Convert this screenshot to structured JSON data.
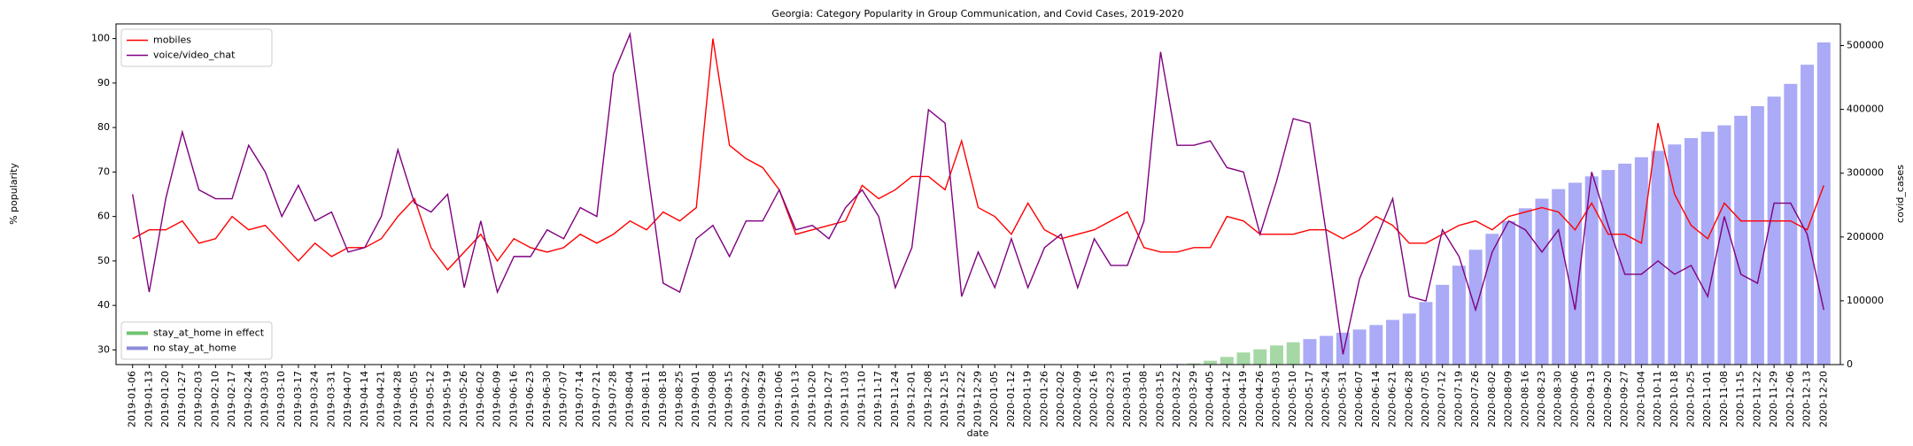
{
  "chart_data": {
    "type": "line",
    "title": "Georgia: Category Popularity in Group Communication, and Covid Cases, 2019-2020",
    "xlabel": "date",
    "ylabel": "% popularity",
    "y2label": "covid_cases",
    "categories": [
      "2019-01-06",
      "2019-01-13",
      "2019-01-20",
      "2019-01-27",
      "2019-02-03",
      "2019-02-10",
      "2019-02-17",
      "2019-02-24",
      "2019-03-03",
      "2019-03-10",
      "2019-03-17",
      "2019-03-24",
      "2019-03-31",
      "2019-04-07",
      "2019-04-14",
      "2019-04-21",
      "2019-04-28",
      "2019-05-05",
      "2019-05-12",
      "2019-05-19",
      "2019-05-26",
      "2019-06-02",
      "2019-06-09",
      "2019-06-16",
      "2019-06-23",
      "2019-06-30",
      "2019-07-07",
      "2019-07-14",
      "2019-07-21",
      "2019-07-28",
      "2019-08-04",
      "2019-08-11",
      "2019-08-18",
      "2019-08-25",
      "2019-09-01",
      "2019-09-08",
      "2019-09-15",
      "2019-09-22",
      "2019-09-29",
      "2019-10-06",
      "2019-10-13",
      "2019-10-20",
      "2019-10-27",
      "2019-11-03",
      "2019-11-10",
      "2019-11-17",
      "2019-11-24",
      "2019-12-01",
      "2019-12-08",
      "2019-12-15",
      "2019-12-22",
      "2019-12-29",
      "2020-01-05",
      "2020-01-12",
      "2020-01-19",
      "2020-01-26",
      "2020-02-02",
      "2020-02-09",
      "2020-02-16",
      "2020-02-23",
      "2020-03-01",
      "2020-03-08",
      "2020-03-15",
      "2020-03-22",
      "2020-03-29",
      "2020-04-05",
      "2020-04-12",
      "2020-04-19",
      "2020-04-26",
      "2020-05-03",
      "2020-05-10",
      "2020-05-17",
      "2020-05-24",
      "2020-05-31",
      "2020-06-07",
      "2020-06-14",
      "2020-06-21",
      "2020-06-28",
      "2020-07-05",
      "2020-07-12",
      "2020-07-19",
      "2020-07-26",
      "2020-08-02",
      "2020-08-09",
      "2020-08-16",
      "2020-08-23",
      "2020-08-30",
      "2020-09-06",
      "2020-09-13",
      "2020-09-20",
      "2020-09-27",
      "2020-10-04",
      "2020-10-11",
      "2020-10-18",
      "2020-10-25",
      "2020-11-01",
      "2020-11-08",
      "2020-11-15",
      "2020-11-22",
      "2020-11-29",
      "2020-12-06",
      "2020-12-13",
      "2020-12-20"
    ],
    "ylim": [
      26.7,
      103.3
    ],
    "yticks": [
      30,
      40,
      50,
      60,
      70,
      80,
      90,
      100
    ],
    "y2lim": [
      0,
      534000
    ],
    "y2ticks": [
      0,
      100000,
      200000,
      300000,
      400000,
      500000
    ],
    "legend": "upper left",
    "y2_legend": "lower left",
    "series": [
      {
        "name": "stay_at_home in effect",
        "type": "bar",
        "axis": "y2",
        "color": "#a6d8a6",
        "values": [
          null,
          null,
          null,
          null,
          null,
          null,
          null,
          null,
          null,
          null,
          null,
          null,
          null,
          null,
          null,
          null,
          null,
          null,
          null,
          null,
          null,
          null,
          null,
          null,
          null,
          null,
          null,
          null,
          null,
          null,
          null,
          null,
          null,
          null,
          null,
          null,
          null,
          null,
          null,
          null,
          null,
          null,
          null,
          null,
          null,
          null,
          null,
          null,
          null,
          null,
          null,
          null,
          null,
          null,
          null,
          null,
          null,
          null,
          null,
          null,
          null,
          null,
          null,
          null,
          2000,
          6000,
          12000,
          19000,
          24000,
          30000,
          35000,
          null,
          null,
          null,
          null,
          null,
          null,
          null,
          null,
          null,
          null,
          null,
          null,
          null,
          null,
          null,
          null,
          null,
          null,
          null,
          null,
          null,
          null,
          null,
          null,
          null,
          null,
          null,
          null,
          null,
          null,
          null,
          null
        ]
      },
      {
        "name": "no stay_at_home",
        "type": "bar",
        "axis": "y2",
        "color": "#aaaaf6",
        "values": [
          0,
          0,
          0,
          0,
          0,
          0,
          0,
          0,
          0,
          0,
          0,
          0,
          0,
          0,
          0,
          0,
          0,
          0,
          0,
          0,
          0,
          0,
          0,
          0,
          0,
          0,
          0,
          0,
          0,
          0,
          0,
          0,
          0,
          0,
          0,
          0,
          0,
          0,
          0,
          0,
          0,
          0,
          0,
          0,
          0,
          0,
          0,
          0,
          0,
          0,
          0,
          0,
          0,
          0,
          0,
          0,
          0,
          0,
          0,
          0,
          0,
          0,
          300,
          1000,
          null,
          null,
          null,
          null,
          null,
          null,
          null,
          40000,
          45000,
          50000,
          55000,
          62000,
          70000,
          80000,
          98000,
          125000,
          155000,
          180000,
          205000,
          225000,
          245000,
          260000,
          275000,
          285000,
          295000,
          305000,
          315000,
          325000,
          335000,
          345000,
          355000,
          365000,
          375000,
          390000,
          405000,
          420000,
          440000,
          470000,
          505000
        ]
      },
      {
        "name": "mobiles",
        "type": "line",
        "color": "#ff0000",
        "values": [
          55,
          57,
          57,
          59,
          54,
          55,
          60,
          57,
          58,
          54,
          50,
          54,
          51,
          53,
          53,
          55,
          60,
          64,
          53,
          48,
          52,
          56,
          50,
          55,
          53,
          52,
          53,
          56,
          54,
          56,
          59,
          57,
          61,
          59,
          62,
          100,
          76,
          73,
          71,
          66,
          56,
          57,
          58,
          59,
          67,
          64,
          66,
          69,
          69,
          66,
          77,
          62,
          60,
          56,
          63,
          57,
          55,
          56,
          57,
          59,
          61,
          53,
          52,
          52,
          53,
          53,
          60,
          59,
          56,
          56,
          56,
          57,
          57,
          55,
          57,
          60,
          58,
          54,
          54,
          56,
          58,
          59,
          57,
          60,
          61,
          62,
          61,
          57,
          63,
          56,
          56,
          54,
          81,
          65,
          58,
          55,
          63,
          59,
          59,
          59,
          59,
          57,
          67
        ]
      },
      {
        "name": "voice/video_chat",
        "type": "line",
        "color": "#800080",
        "values": [
          65,
          43,
          64,
          79,
          66,
          64,
          64,
          76,
          70,
          60,
          67,
          59,
          61,
          52,
          53,
          60,
          75,
          63,
          61,
          65,
          44,
          59,
          43,
          51,
          51,
          57,
          55,
          62,
          60,
          92,
          101,
          72,
          45,
          43,
          55,
          58,
          51,
          59,
          59,
          66,
          57,
          58,
          55,
          62,
          66,
          60,
          44,
          53,
          84,
          81,
          42,
          52,
          44,
          55,
          44,
          53,
          56,
          44,
          55,
          49,
          49,
          59,
          97,
          76,
          76,
          77,
          71,
          70,
          56,
          68,
          82,
          81,
          56,
          29,
          46,
          55,
          64,
          42,
          41,
          57,
          51,
          39,
          52,
          59,
          57,
          52,
          57,
          39,
          70,
          58,
          47,
          47,
          50,
          47,
          49,
          42,
          60,
          47,
          45,
          63,
          63,
          56,
          39
        ]
      }
    ]
  }
}
